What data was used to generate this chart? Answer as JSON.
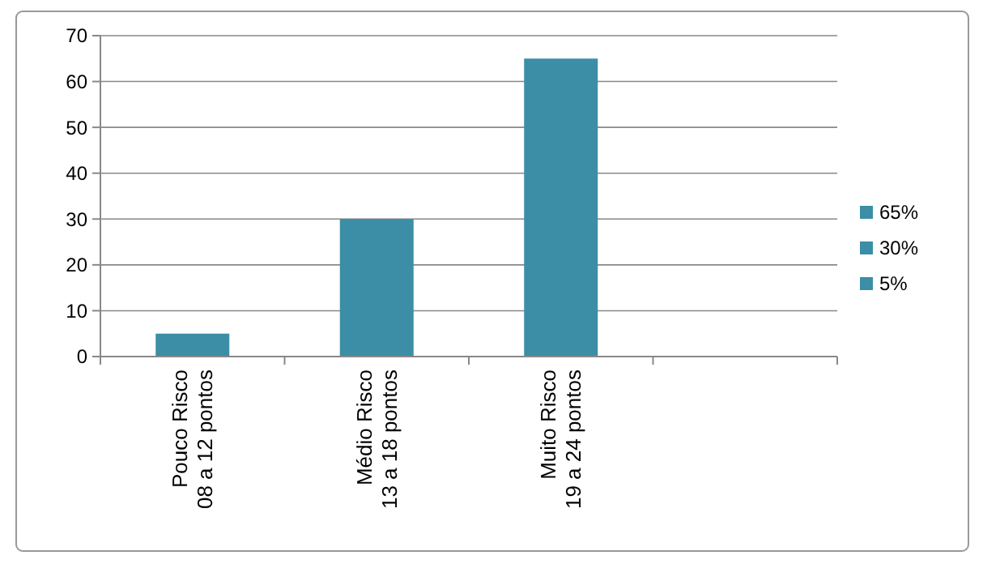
{
  "chart_data": {
    "type": "bar",
    "categories": [
      "Pouco Risco\n08 a 12 pontos",
      "Médio Risco\n13 a 18 pontos",
      "Muito Risco\n19 a 24 pontos",
      null
    ],
    "series": [
      {
        "name": "65%",
        "color": "#3b8ea5",
        "values": [
          null,
          null,
          65,
          null
        ]
      },
      {
        "name": "30%",
        "color": "#3b8ea5",
        "values": [
          null,
          30,
          null,
          null
        ]
      },
      {
        "name": "5%",
        "color": "#3b8ea5",
        "values": [
          5,
          null,
          null,
          null
        ]
      }
    ],
    "ylim": [
      0,
      70
    ],
    "yticks": [
      0,
      10,
      20,
      30,
      40,
      50,
      60,
      70
    ],
    "grid": "y",
    "legend": "right"
  }
}
